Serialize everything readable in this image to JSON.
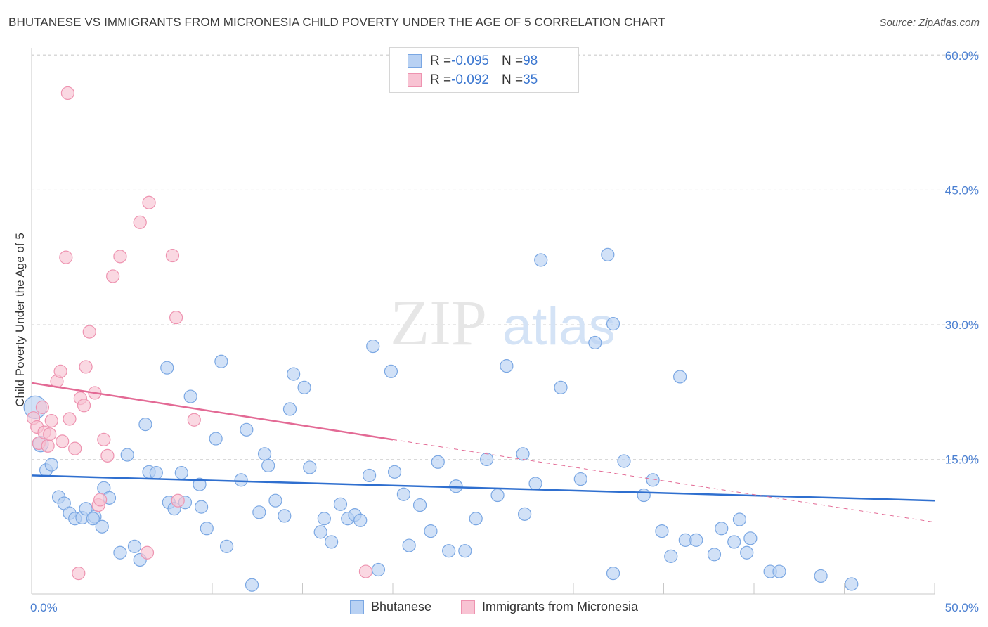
{
  "title": "BHUTANESE VS IMMIGRANTS FROM MICRONESIA CHILD POVERTY UNDER THE AGE OF 5 CORRELATION CHART",
  "source": "Source: ZipAtlas.com",
  "watermark": {
    "zip": "ZIP",
    "atlas": "atlas"
  },
  "legend": {
    "rows": [
      {
        "r_label": "R = ",
        "r_value": "-0.095",
        "n_label": "N = ",
        "n_value": "98"
      },
      {
        "r_label": "R = ",
        "r_value": "-0.092",
        "n_label": "N = ",
        "n_value": "35"
      }
    ]
  },
  "bottom_legend": {
    "series1": "Bhutanese",
    "series2": "Immigrants from Micronesia"
  },
  "colors": {
    "blue_fill": "#b8d1f3",
    "blue_stroke": "#7aa7e3",
    "blue_line": "#2f6fcf",
    "pink_fill": "#f8c3d3",
    "pink_stroke": "#ee93b0",
    "pink_line": "#e36a95",
    "tick_text": "#4a7fd1",
    "grid": "#d9d9d9"
  },
  "chart_data": {
    "type": "scatter",
    "title": "BHUTANESE VS IMMIGRANTS FROM MICRONESIA CHILD POVERTY UNDER THE AGE OF 5 CORRELATION CHART",
    "xlabel": "",
    "ylabel": "Child Poverty Under the Age of 5",
    "xlim": [
      0,
      50
    ],
    "ylim": [
      0,
      62
    ],
    "x_tick_labels": [
      "0.0%",
      "50.0%"
    ],
    "y_ticks": [
      15,
      30,
      45,
      60
    ],
    "y_tick_labels": [
      "15.0%",
      "30.0%",
      "45.0%",
      "60.0%"
    ],
    "grid": "horizontal dashed",
    "legend_position": "top-center",
    "series": [
      {
        "name": "Bhutanese",
        "R": -0.095,
        "N": 98,
        "trend": {
          "x": [
            0,
            50
          ],
          "y": [
            13.2,
            10.4
          ]
        },
        "points": [
          [
            0.2,
            20.8,
            16
          ],
          [
            0.5,
            16.7,
            11
          ],
          [
            0.8,
            13.8,
            9
          ],
          [
            1.1,
            14.4,
            9
          ],
          [
            1.5,
            10.8,
            9
          ],
          [
            1.8,
            10.1,
            9
          ],
          [
            2.1,
            9.0,
            9
          ],
          [
            2.4,
            8.4,
            9
          ],
          [
            2.8,
            8.5,
            9
          ],
          [
            3.0,
            9.5,
            9
          ],
          [
            3.5,
            8.6,
            9
          ],
          [
            3.4,
            8.4,
            9
          ],
          [
            3.9,
            7.5,
            9
          ],
          [
            4.0,
            11.8,
            9
          ],
          [
            4.3,
            10.7,
            9
          ],
          [
            4.9,
            4.6,
            9
          ],
          [
            5.3,
            15.5,
            9
          ],
          [
            5.7,
            5.3,
            9
          ],
          [
            6.0,
            3.8,
            9
          ],
          [
            6.3,
            18.9,
            9
          ],
          [
            6.5,
            13.6,
            9
          ],
          [
            6.9,
            13.5,
            9
          ],
          [
            7.5,
            25.2,
            9
          ],
          [
            7.6,
            10.2,
            9
          ],
          [
            7.9,
            9.5,
            9
          ],
          [
            8.3,
            13.5,
            9
          ],
          [
            8.5,
            10.2,
            9
          ],
          [
            8.8,
            22.0,
            9
          ],
          [
            9.3,
            12.2,
            9
          ],
          [
            9.4,
            9.7,
            9
          ],
          [
            9.7,
            7.3,
            9
          ],
          [
            10.2,
            17.3,
            9
          ],
          [
            10.5,
            25.9,
            9
          ],
          [
            10.8,
            5.3,
            9
          ],
          [
            11.6,
            12.7,
            9
          ],
          [
            11.9,
            18.3,
            9
          ],
          [
            12.2,
            1.0,
            9
          ],
          [
            12.6,
            9.1,
            9
          ],
          [
            12.9,
            15.6,
            9
          ],
          [
            13.1,
            14.3,
            9
          ],
          [
            13.5,
            10.4,
            9
          ],
          [
            14.0,
            8.7,
            9
          ],
          [
            14.3,
            20.6,
            9
          ],
          [
            14.5,
            24.5,
            9
          ],
          [
            15.1,
            23.0,
            9
          ],
          [
            15.4,
            14.1,
            9
          ],
          [
            16.0,
            6.9,
            9
          ],
          [
            16.2,
            8.4,
            9
          ],
          [
            16.6,
            5.8,
            9
          ],
          [
            17.1,
            10.0,
            9
          ],
          [
            17.5,
            8.4,
            9
          ],
          [
            17.9,
            8.8,
            9
          ],
          [
            18.2,
            8.2,
            9
          ],
          [
            18.7,
            13.2,
            9
          ],
          [
            18.9,
            27.6,
            9
          ],
          [
            19.2,
            2.7,
            9
          ],
          [
            19.9,
            24.8,
            9
          ],
          [
            20.1,
            13.6,
            9
          ],
          [
            20.6,
            11.1,
            9
          ],
          [
            20.9,
            5.4,
            9
          ],
          [
            21.5,
            9.9,
            9
          ],
          [
            22.1,
            7.0,
            9
          ],
          [
            22.5,
            14.7,
            9
          ],
          [
            23.1,
            4.8,
            9
          ],
          [
            23.5,
            12.0,
            9
          ],
          [
            24.0,
            4.8,
            9
          ],
          [
            24.6,
            8.4,
            9
          ],
          [
            25.2,
            15.0,
            9
          ],
          [
            25.8,
            11.0,
            9
          ],
          [
            26.3,
            25.4,
            9
          ],
          [
            27.2,
            15.6,
            9
          ],
          [
            27.3,
            8.9,
            9
          ],
          [
            27.9,
            12.3,
            9
          ],
          [
            28.2,
            37.2,
            9
          ],
          [
            29.3,
            23.0,
            9
          ],
          [
            30.4,
            12.8,
            9
          ],
          [
            31.2,
            28.0,
            9
          ],
          [
            31.9,
            37.8,
            9
          ],
          [
            32.2,
            30.1,
            9
          ],
          [
            32.2,
            2.3,
            9
          ],
          [
            32.8,
            14.8,
            9
          ],
          [
            33.9,
            11.0,
            9
          ],
          [
            34.4,
            12.7,
            9
          ],
          [
            34.9,
            7.0,
            9
          ],
          [
            35.4,
            4.2,
            9
          ],
          [
            35.9,
            24.2,
            9
          ],
          [
            36.2,
            6.0,
            9
          ],
          [
            36.8,
            6.0,
            9
          ],
          [
            37.8,
            4.4,
            9
          ],
          [
            38.2,
            7.3,
            9
          ],
          [
            38.9,
            5.8,
            9
          ],
          [
            39.2,
            8.3,
            9
          ],
          [
            39.6,
            4.6,
            9
          ],
          [
            39.8,
            6.2,
            9
          ],
          [
            40.9,
            2.5,
            9
          ],
          [
            41.4,
            2.5,
            9
          ],
          [
            43.7,
            2.0,
            9
          ],
          [
            45.4,
            1.1,
            9
          ]
        ]
      },
      {
        "name": "Immigrants from Micronesia",
        "R": -0.092,
        "N": 35,
        "trend_solid": {
          "x": [
            0,
            20
          ],
          "y": [
            23.5,
            17.2
          ]
        },
        "trend_dashed": {
          "x": [
            20,
            50
          ],
          "y": [
            17.2,
            8.0
          ]
        },
        "points": [
          [
            0.1,
            19.6,
            9
          ],
          [
            0.3,
            18.6,
            9
          ],
          [
            0.4,
            16.8,
            9
          ],
          [
            0.6,
            20.8,
            9
          ],
          [
            0.7,
            18.0,
            9
          ],
          [
            0.9,
            16.5,
            9
          ],
          [
            1.0,
            17.8,
            9
          ],
          [
            1.1,
            19.3,
            9
          ],
          [
            1.4,
            23.7,
            9
          ],
          [
            1.6,
            24.8,
            9
          ],
          [
            1.7,
            17.0,
            9
          ],
          [
            1.9,
            37.5,
            9
          ],
          [
            2.0,
            55.8,
            9
          ],
          [
            2.1,
            19.5,
            9
          ],
          [
            2.4,
            16.2,
            9
          ],
          [
            2.6,
            2.3,
            9
          ],
          [
            2.7,
            21.8,
            9
          ],
          [
            2.9,
            21.0,
            9
          ],
          [
            3.0,
            25.3,
            9
          ],
          [
            3.2,
            29.2,
            9
          ],
          [
            3.5,
            22.4,
            9
          ],
          [
            3.7,
            9.9,
            9
          ],
          [
            3.8,
            10.5,
            9
          ],
          [
            4.0,
            17.2,
            9
          ],
          [
            4.2,
            15.4,
            9
          ],
          [
            4.5,
            35.4,
            9
          ],
          [
            4.9,
            37.6,
            9
          ],
          [
            6.0,
            41.4,
            9
          ],
          [
            6.4,
            4.6,
            9
          ],
          [
            6.5,
            43.6,
            9
          ],
          [
            7.8,
            37.7,
            9
          ],
          [
            8.0,
            30.8,
            9
          ],
          [
            8.1,
            10.4,
            9
          ],
          [
            9.0,
            19.4,
            9
          ],
          [
            18.5,
            2.5,
            9
          ]
        ]
      }
    ]
  }
}
